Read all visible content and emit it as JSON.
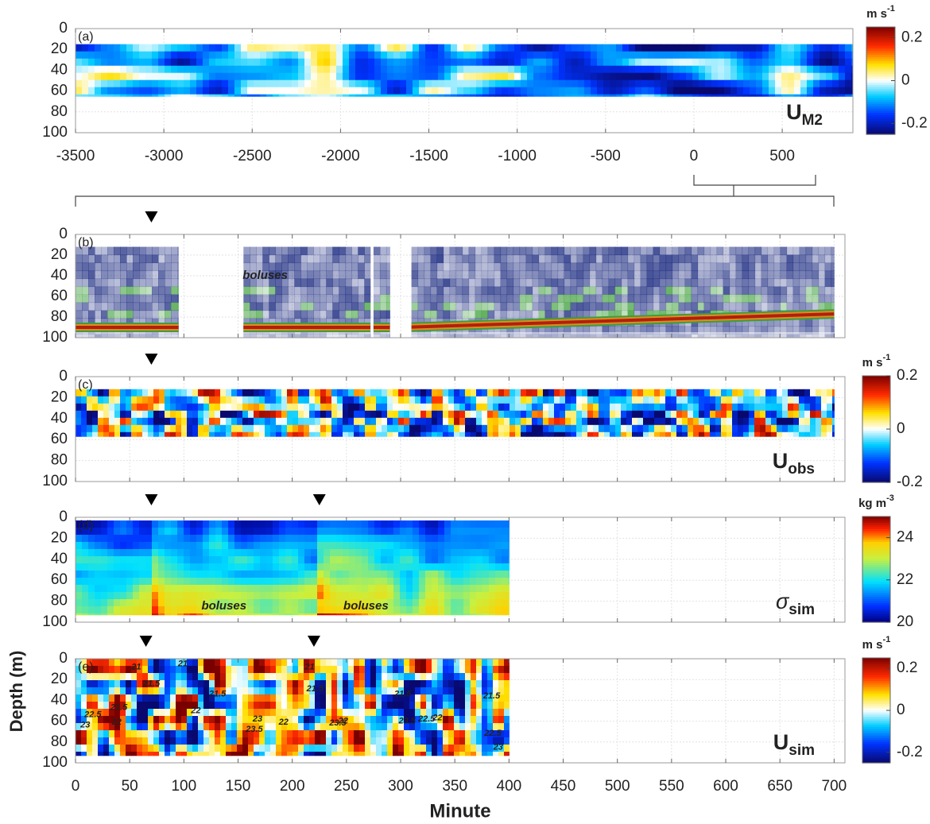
{
  "chart_data": [
    {
      "type": "heatmap",
      "panel_label": "(a)",
      "variable": "U",
      "subscript": "M2",
      "colormap": "diverging",
      "xlim": [
        -3500,
        900
      ],
      "xticks": [
        -3500,
        -3000,
        -2500,
        -2000,
        -1500,
        -1000,
        -500,
        0,
        500
      ],
      "xtick_labels": true,
      "ylim": [
        0,
        100
      ],
      "yticks": [
        0,
        20,
        40,
        60,
        80,
        100
      ],
      "grid": true,
      "field_extent": {
        "x": [
          [
            -3500,
            900
          ]
        ],
        "depth": [
          15,
          65
        ]
      },
      "colorbar": {
        "unit": "m s",
        "unit_exponent": "-1",
        "lim": [
          -0.25,
          0.25
        ],
        "ticks": [
          -0.2,
          0,
          0.2
        ]
      }
    },
    {
      "type": "echogram",
      "panel_label": "(b)",
      "xlim": [
        0,
        710
      ],
      "xticks": [
        0,
        50,
        100,
        150,
        200,
        250,
        300,
        350,
        400,
        450,
        500,
        550,
        600,
        650,
        700
      ],
      "xtick_labels": false,
      "ylim": [
        0,
        100
      ],
      "yticks": [
        0,
        20,
        40,
        60,
        80,
        100
      ],
      "grid": true,
      "field_extent": {
        "x": [
          [
            0,
            95
          ],
          [
            155,
            272
          ],
          [
            275,
            290
          ],
          [
            310,
            700
          ]
        ],
        "depth": [
          12,
          100
        ]
      },
      "bottom": {
        "x": [
          0,
          300,
          700
        ],
        "depth": [
          90,
          90,
          77
        ]
      },
      "markers": [
        70
      ],
      "annotations": [
        {
          "text": "boluses",
          "x": 175,
          "y": 40
        }
      ]
    },
    {
      "type": "heatmap",
      "panel_label": "(c)",
      "variable": "U",
      "subscript": "obs",
      "colormap": "diverging",
      "xlim": [
        0,
        710
      ],
      "xticks": [
        0,
        50,
        100,
        150,
        200,
        250,
        300,
        350,
        400,
        450,
        500,
        550,
        600,
        650,
        700
      ],
      "xtick_labels": false,
      "ylim": [
        0,
        100
      ],
      "yticks": [
        0,
        20,
        40,
        60,
        80,
        100
      ],
      "grid": true,
      "field_extent": {
        "x": [
          [
            0,
            700
          ]
        ],
        "depth": [
          12,
          57
        ]
      },
      "markers": [
        70
      ],
      "colorbar": {
        "unit": "m s",
        "unit_exponent": "-1",
        "lim": [
          -0.2,
          0.2
        ],
        "ticks": [
          -0.2,
          0,
          0.2
        ]
      }
    },
    {
      "type": "heatmap",
      "panel_label": "(d)",
      "variable": "σ",
      "subscript": "sim",
      "colormap": "sequential",
      "xlim": [
        0,
        710
      ],
      "xticks": [
        0,
        50,
        100,
        150,
        200,
        250,
        300,
        350,
        400,
        450,
        500,
        550,
        600,
        650,
        700
      ],
      "xtick_labels": false,
      "ylim": [
        0,
        100
      ],
      "yticks": [
        0,
        20,
        40,
        60,
        80,
        100
      ],
      "grid": true,
      "field_extent": {
        "x": [
          [
            0,
            400
          ]
        ],
        "depth": [
          3,
          93
        ]
      },
      "markers": [
        70,
        225
      ],
      "annotations": [
        {
          "text": "boluses",
          "x": 137,
          "y": 85
        },
        {
          "text": "boluses",
          "x": 268,
          "y": 85
        }
      ],
      "colorbar": {
        "unit": "kg m",
        "unit_exponent": "-3",
        "lim": [
          20,
          25
        ],
        "ticks": [
          20,
          22,
          24
        ]
      }
    },
    {
      "type": "heatmap",
      "panel_label": "(e)",
      "variable": "U",
      "subscript": "sim",
      "colormap": "diverging",
      "xlim": [
        0,
        710
      ],
      "xticks": [
        0,
        50,
        100,
        150,
        200,
        250,
        300,
        350,
        400,
        450,
        500,
        550,
        600,
        650,
        700
      ],
      "xtick_labels": true,
      "ylim": [
        0,
        100
      ],
      "yticks": [
        0,
        20,
        40,
        60,
        80,
        100
      ],
      "grid": true,
      "xlabel": "Minute",
      "ylabel": "Depth (m)",
      "field_extent": {
        "x": [
          [
            0,
            400
          ]
        ],
        "depth": [
          0,
          93
        ]
      },
      "markers": [
        65,
        220
      ],
      "contour_labels": [
        {
          "value": 21,
          "x": 56,
          "y": 8
        },
        {
          "value": 21.5,
          "x": 70,
          "y": 24
        },
        {
          "value": 21,
          "x": 99,
          "y": 5
        },
        {
          "value": 21.5,
          "x": 131,
          "y": 34
        },
        {
          "value": 22.5,
          "x": 16,
          "y": 54
        },
        {
          "value": 21.5,
          "x": 40,
          "y": 47
        },
        {
          "value": 22,
          "x": 38,
          "y": 61
        },
        {
          "value": 23,
          "x": 9,
          "y": 64
        },
        {
          "value": 22,
          "x": 111,
          "y": 50
        },
        {
          "value": 23.5,
          "x": 165,
          "y": 68
        },
        {
          "value": 23,
          "x": 168,
          "y": 58
        },
        {
          "value": 22,
          "x": 192,
          "y": 61
        },
        {
          "value": 21,
          "x": 216,
          "y": 8
        },
        {
          "value": 21.5,
          "x": 221,
          "y": 29
        },
        {
          "value": 22,
          "x": 247,
          "y": 60
        },
        {
          "value": 23.5,
          "x": 242,
          "y": 62
        },
        {
          "value": 21.5,
          "x": 302,
          "y": 34
        },
        {
          "value": 23.5,
          "x": 306,
          "y": 60
        },
        {
          "value": 22.5,
          "x": 324,
          "y": 58
        },
        {
          "value": 22,
          "x": 334,
          "y": 57
        },
        {
          "value": 21.5,
          "x": 384,
          "y": 36
        },
        {
          "value": 22.5,
          "x": 385,
          "y": 72
        },
        {
          "value": 23,
          "x": 390,
          "y": 85
        }
      ],
      "colorbar": {
        "unit": "m s",
        "unit_exponent": "-1",
        "lim": [
          -0.25,
          0.25
        ],
        "ticks": [
          -0.2,
          0,
          0.2
        ]
      }
    }
  ]
}
